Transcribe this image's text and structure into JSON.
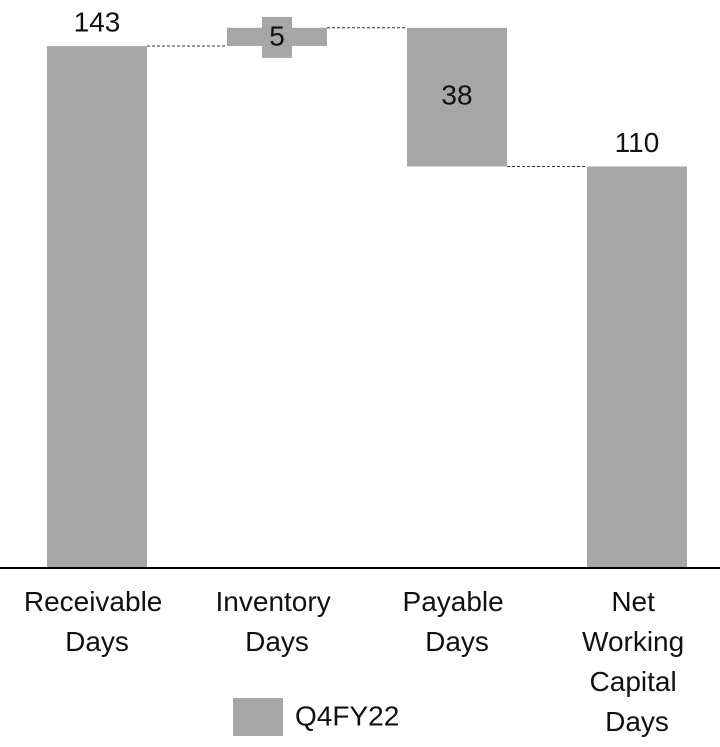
{
  "chart_data": {
    "type": "waterfall",
    "categories": [
      "Receivable Days",
      "Inventory Days",
      "Payable Days",
      "Net Working Capital Days"
    ],
    "series": [
      {
        "name": "Q4FY22",
        "color": "#a6a6a6",
        "values": [
          143,
          5,
          -38,
          110
        ],
        "value_labels": [
          "143",
          "5",
          "38",
          "110"
        ]
      }
    ],
    "ylim": [
      0,
      150
    ],
    "grid": false,
    "legend": "bottom"
  }
}
